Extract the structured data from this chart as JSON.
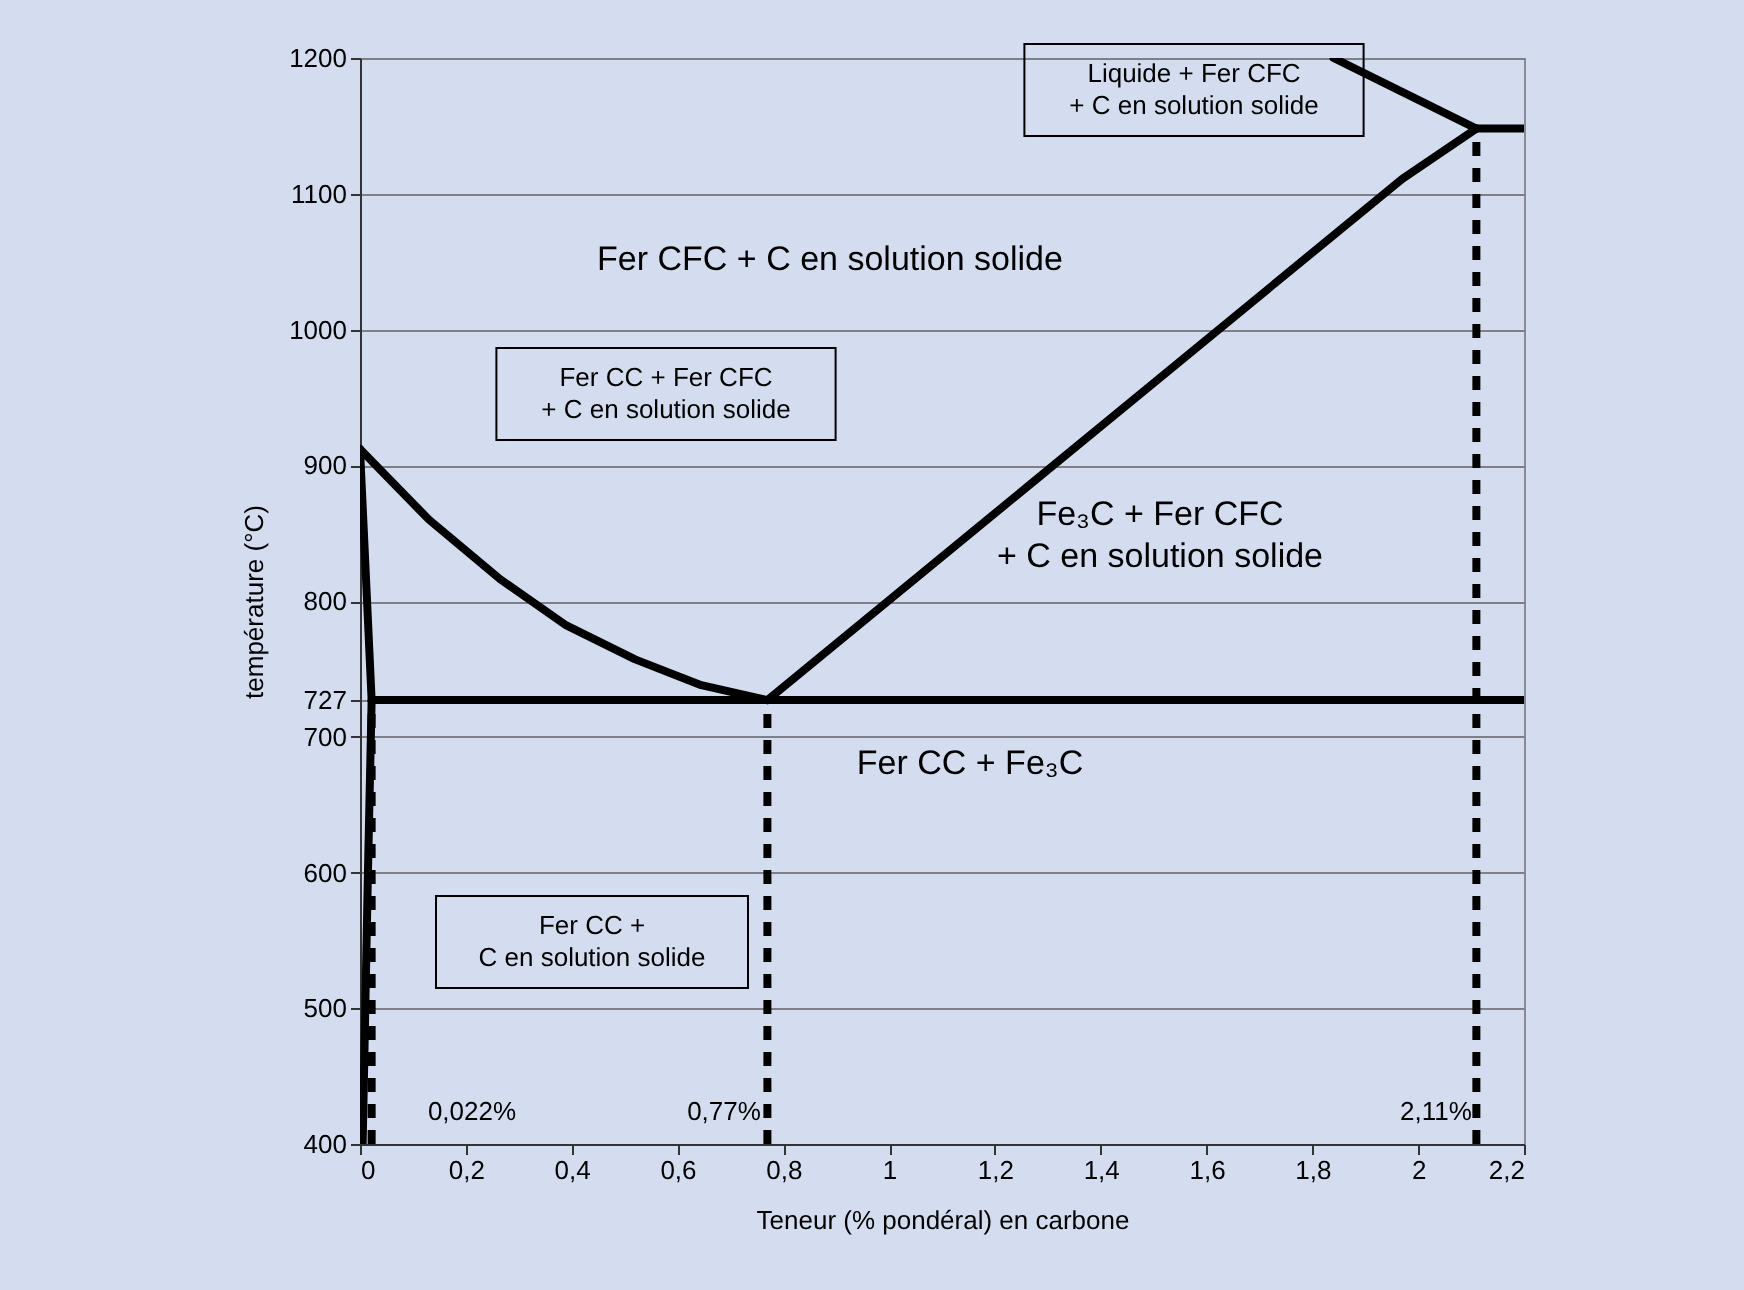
{
  "chart_data": {
    "type": "line",
    "xlabel": "Teneur (% pondéral) en carbone",
    "ylabel": "température (°C)",
    "xlim": [
      0,
      2.2
    ],
    "ylim": [
      400,
      1200
    ],
    "xticks": [
      {
        "value": 0,
        "label": "0"
      },
      {
        "value": 0.2,
        "label": "0,2"
      },
      {
        "value": 0.4,
        "label": "0,4"
      },
      {
        "value": 0.6,
        "label": "0,6"
      },
      {
        "value": 0.8,
        "label": "0,8"
      },
      {
        "value": 1,
        "label": "1"
      },
      {
        "value": 1.2,
        "label": "1,2"
      },
      {
        "value": 1.4,
        "label": "1,4"
      },
      {
        "value": 1.6,
        "label": "1,6"
      },
      {
        "value": 1.8,
        "label": "1,8"
      },
      {
        "value": 2,
        "label": "2"
      },
      {
        "value": 2.2,
        "label": "2,2"
      }
    ],
    "yticks": [
      400,
      500,
      600,
      700,
      727,
      800,
      900,
      1000,
      1100,
      1200
    ],
    "grid": "y",
    "marker": "none",
    "series": [
      {
        "color": "#000000",
        "line_style": "solid",
        "x": [
          0,
          0.13,
          0.265,
          0.39,
          0.52,
          0.645,
          0.77
        ],
        "values": [
          912,
          860,
          816,
          782,
          757,
          738,
          727
        ]
      },
      {
        "color": "#000000",
        "line_style": "solid",
        "x": [
          0,
          0.022,
          0.015,
          0.005
        ],
        "values": [
          912,
          727,
          600,
          400
        ]
      },
      {
        "color": "#000000",
        "line_style": "solid",
        "x": [
          0.022,
          2.2
        ],
        "values": [
          727,
          727
        ]
      },
      {
        "color": "#000000",
        "line_style": "solid",
        "x": [
          0.77,
          1.97,
          2.11
        ],
        "values": [
          727,
          1111,
          1148
        ]
      },
      {
        "color": "#000000",
        "line_style": "solid",
        "x": [
          1.84,
          2.11
        ],
        "values": [
          1200,
          1148
        ]
      },
      {
        "color": "#000000",
        "line_style": "solid",
        "x": [
          2.11,
          2.2
        ],
        "values": [
          1148,
          1148
        ]
      },
      {
        "color": "#000000",
        "line_style": "dashed",
        "x": [
          0.022,
          0.022
        ],
        "values": [
          400,
          727
        ]
      },
      {
        "color": "#000000",
        "line_style": "dashed",
        "x": [
          0.77,
          0.77
        ],
        "values": [
          400,
          727
        ]
      },
      {
        "color": "#000000",
        "line_style": "dashed",
        "x": [
          2.11,
          2.11
        ],
        "values": [
          400,
          1148
        ]
      }
    ],
    "annotations": [
      "Fer CFC + C en solution solide",
      "Fer CC +  Fer CFC\n+ C en solution solide",
      "Fe₃C + Fer CFC\n+ C en solution solide",
      "Fer CC + Fe₃C",
      "Fer CC +\nC en solution solide",
      "Liquide + Fer CFC\n+ C en solution solide",
      "0,022%",
      "0,77%",
      "2,11%"
    ]
  }
}
